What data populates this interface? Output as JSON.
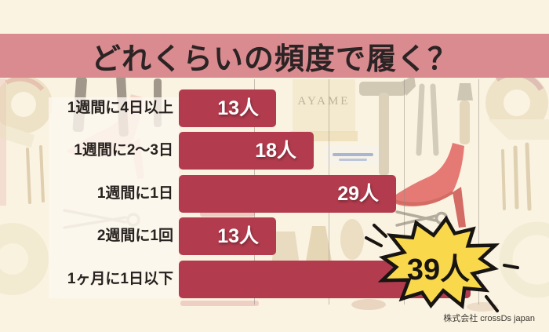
{
  "header": {
    "title": "どれくらいの頻度で履く？"
  },
  "chart_data": {
    "type": "bar",
    "orientation": "horizontal",
    "title": "どれくらいの頻度で履く？",
    "categories": [
      "1週間に4日以上",
      "1週間に2〜3日",
      "1週間に1日",
      "2週間に1回",
      "1ヶ月に1日以下"
    ],
    "values": [
      13,
      18,
      29,
      13,
      39
    ],
    "unit": "人",
    "value_labels": [
      "13人",
      "18人",
      "29人",
      "13人",
      "39人"
    ],
    "xlim": [
      0,
      40
    ],
    "gridline_values": [
      10,
      20,
      30,
      40
    ],
    "grid": true,
    "legend": false,
    "highlight": {
      "category": "1ヶ月に1日以下",
      "value_label": "39人",
      "style": "yellow starburst badge"
    }
  },
  "badge": {
    "label": "39人"
  },
  "background": {
    "brand_text": "AYAME"
  },
  "footer": {
    "credit": "株式会社 crossDs japan"
  },
  "colors": {
    "cream": "#faf3e1",
    "banner_pink": "#d98b8f",
    "title_text": "#2b2324",
    "bar_red": "#b23c4e",
    "bar_value_text": "#ffffff",
    "label_text": "#27211f",
    "panel_white": "rgba(252,248,240,0.8)",
    "gridline": "#8f8a82",
    "starburst_yellow": "#f9d94b",
    "starburst_outline": "#171412",
    "badge_text": "#171412",
    "footer_text": "#3a3631"
  }
}
